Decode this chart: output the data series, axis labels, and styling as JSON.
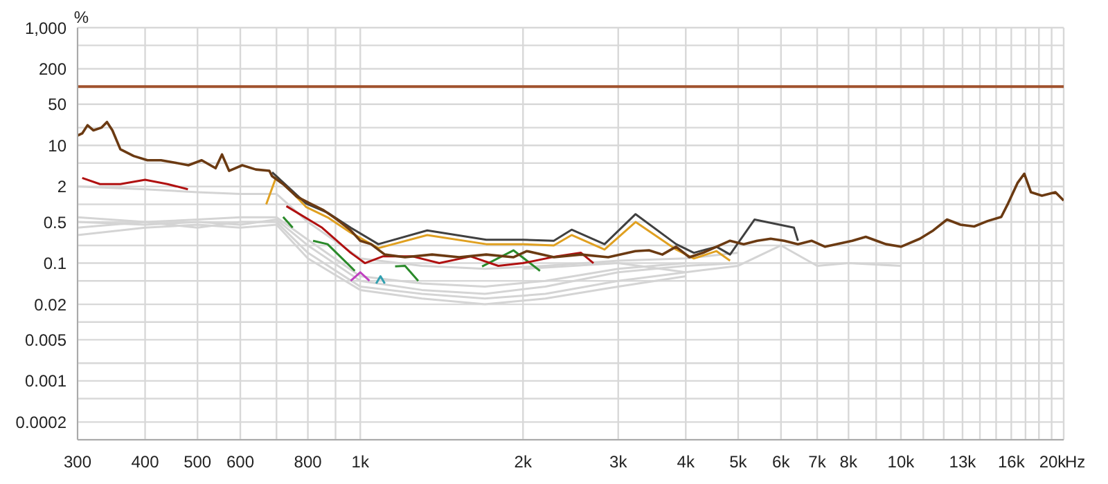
{
  "chart_data": {
    "type": "line",
    "ylabel": "%",
    "log": "xy",
    "grid": true,
    "marker": "none",
    "line_style": "solid",
    "xlim": [
      300,
      20000
    ],
    "ylim": [
      0.0001,
      1000
    ],
    "xticks": [
      300,
      400,
      500,
      600,
      {
        "value": 700,
        "label": null
      },
      800,
      {
        "value": 900,
        "label": null
      },
      {
        "value": 1000,
        "label": "1k"
      },
      {
        "value": 2000,
        "label": "2k"
      },
      {
        "value": 3000,
        "label": "3k"
      },
      {
        "value": 4000,
        "label": "4k"
      },
      {
        "value": 5000,
        "label": "5k"
      },
      {
        "value": 6000,
        "label": "6k"
      },
      {
        "value": 7000,
        "label": "7k"
      },
      {
        "value": 8000,
        "label": "8k"
      },
      {
        "value": 9000,
        "label": null
      },
      {
        "value": 10000,
        "label": "10k"
      },
      {
        "value": 11000,
        "label": null
      },
      {
        "value": 12000,
        "label": null
      },
      {
        "value": 13000,
        "label": "13k"
      },
      {
        "value": 14000,
        "label": null
      },
      {
        "value": 15000,
        "label": null
      },
      {
        "value": 16000,
        "label": "16k"
      },
      {
        "value": 17000,
        "label": null
      },
      {
        "value": 18000,
        "label": null
      },
      {
        "value": 19000,
        "label": null
      },
      {
        "value": 20000,
        "label": "20k"
      }
    ],
    "xlabel": "Hz",
    "yticks": [
      {
        "value": 0.0001,
        "label": null
      },
      0.0002,
      {
        "value": 0.0005,
        "label": null
      },
      0.001,
      {
        "value": 0.002,
        "label": null
      },
      0.005,
      {
        "value": 0.01,
        "label": null
      },
      0.02,
      {
        "value": 0.05,
        "label": null
      },
      0.1,
      {
        "value": 0.2,
        "label": null
      },
      0.5,
      {
        "value": 1,
        "label": null
      },
      2,
      {
        "value": 5,
        "label": null
      },
      10,
      {
        "value": 20,
        "label": null
      },
      50,
      {
        "value": 100,
        "label": null
      },
      200,
      {
        "value": 500,
        "label": null
      },
      {
        "value": 1000,
        "label": "1,000"
      }
    ],
    "ref_lines": [
      {
        "axis": "y",
        "value": 100,
        "label": null,
        "color": "#a0522d"
      }
    ],
    "series": [
      {
        "color": "#d4d4d4",
        "x": [
          300,
          400,
          500,
          600,
          700,
          800,
          1000,
          1300,
          1700,
          2200,
          3000,
          4000,
          5000
        ],
        "values": [
          2.0,
          1.8,
          1.6,
          1.5,
          1.5,
          0.5,
          0.12,
          0.09,
          0.08,
          0.09,
          0.11,
          0.12,
          0.15
        ]
      },
      {
        "color": "#d4d4d4",
        "x": [
          300,
          400,
          500,
          600,
          700,
          800,
          1000,
          1300,
          1700,
          2200,
          3000,
          4000,
          5000
        ],
        "values": [
          0.5,
          0.45,
          0.5,
          0.45,
          0.55,
          0.2,
          0.05,
          0.035,
          0.03,
          0.04,
          0.07,
          0.09,
          0.1
        ]
      },
      {
        "color": "#d4d4d4",
        "x": [
          300,
          400,
          500,
          600,
          700,
          800,
          1000,
          1300,
          1700,
          2200,
          3000,
          4000
        ],
        "values": [
          0.4,
          0.5,
          0.4,
          0.5,
          0.5,
          0.15,
          0.04,
          0.03,
          0.025,
          0.03,
          0.05,
          0.07
        ]
      },
      {
        "color": "#d4d4d4",
        "x": [
          300,
          400,
          500,
          600,
          700,
          800,
          1000,
          1300,
          1700,
          2200,
          3000,
          4000
        ],
        "values": [
          0.3,
          0.4,
          0.45,
          0.4,
          0.45,
          0.12,
          0.035,
          0.025,
          0.02,
          0.025,
          0.04,
          0.06
        ]
      },
      {
        "color": "#d4d4d4",
        "x": [
          300,
          400,
          500,
          600,
          700,
          800,
          1000,
          1300,
          1700,
          2200,
          3000,
          4000
        ],
        "values": [
          0.6,
          0.5,
          0.55,
          0.6,
          0.6,
          0.25,
          0.06,
          0.045,
          0.04,
          0.05,
          0.08,
          0.1
        ]
      },
      {
        "color": "#d4d4d4",
        "x": [
          2000,
          3000,
          4000,
          5000,
          6000,
          7000,
          8000,
          10000
        ],
        "values": [
          0.08,
          0.1,
          0.07,
          0.09,
          0.2,
          0.09,
          0.1,
          0.09
        ]
      },
      {
        "color": "#c040c0",
        "x": [
          960,
          1000,
          1040
        ],
        "values": [
          0.05,
          0.07,
          0.05
        ]
      },
      {
        "color": "#30a0b0",
        "x": [
          1070,
          1090,
          1110
        ],
        "values": [
          0.045,
          0.06,
          0.045
        ]
      },
      {
        "color": "#2a8a2a",
        "x": [
          720,
          750,
          780,
          818,
          870,
          977,
          1050,
          1160,
          1210,
          1280,
          1400,
          1680,
          1920,
          2150
        ],
        "values": [
          0.61,
          0.4,
          null,
          0.24,
          0.21,
          0.074,
          null,
          0.088,
          0.09,
          0.05,
          null,
          0.088,
          0.165,
          0.074
        ]
      },
      {
        "color": "#b01010",
        "x": [
          306,
          330,
          360,
          400,
          440,
          480,
          600,
          730,
          850,
          960,
          1020,
          1100,
          1250,
          1400,
          1600,
          1800,
          2000,
          2300,
          2560,
          2700
        ],
        "values": [
          2.8,
          2.2,
          2.2,
          2.6,
          2.2,
          1.8,
          null,
          0.93,
          0.4,
          0.15,
          0.1,
          0.13,
          0.13,
          0.1,
          0.13,
          0.09,
          0.1,
          0.13,
          0.15,
          0.1
        ]
      },
      {
        "color": "#e0a020",
        "x": [
          670,
          700,
          794,
          870,
          960,
          1080,
          1330,
          1710,
          2000,
          2280,
          2460,
          2830,
          3230,
          3840,
          4140,
          4560,
          4830
        ],
        "values": [
          1.0,
          3.0,
          0.9,
          0.6,
          0.33,
          0.18,
          0.3,
          0.21,
          0.21,
          0.2,
          0.3,
          0.17,
          0.5,
          0.17,
          0.12,
          0.16,
          0.11
        ]
      },
      {
        "color": "#404040",
        "x": [
          687,
          794,
          870,
          960,
          1080,
          1330,
          1710,
          2000,
          2280,
          2460,
          2830,
          3230,
          3840,
          4140,
          4560,
          4830,
          5360,
          6340,
          6450
        ],
        "values": [
          3.5,
          1.03,
          0.72,
          0.4,
          0.21,
          0.36,
          0.25,
          0.25,
          0.24,
          0.37,
          0.21,
          0.68,
          0.21,
          0.15,
          0.19,
          0.14,
          0.55,
          0.4,
          0.24
        ]
      },
      {
        "color": "#6b3a12",
        "x": [
          300,
          306,
          313,
          321,
          332,
          340,
          348,
          360,
          381,
          404,
          428,
          454,
          481,
          509,
          540,
          555,
          572,
          605,
          641,
          679,
          687,
          720,
          763,
          808,
          856,
          906,
          960,
          1000,
          1047,
          1110,
          1210,
          1358,
          1524,
          1710,
          1919,
          2033,
          2282,
          2562,
          2875,
          3226,
          3420,
          3620,
          3837,
          4063,
          4305,
          4830,
          5118,
          5421,
          5743,
          6085,
          6450,
          6834,
          7240,
          8128,
          8610,
          9380,
          10000,
          10840,
          11480,
          12170,
          12890,
          13660,
          14470,
          15330,
          15780,
          16430,
          16910,
          17400,
          18230,
          19310,
          20000
        ],
        "values": [
          14.7,
          16,
          22,
          18,
          20,
          25,
          18,
          8.6,
          6.6,
          5.6,
          5.6,
          5.1,
          4.6,
          5.6,
          4.1,
          7.0,
          3.7,
          4.6,
          3.9,
          3.7,
          3.0,
          2.2,
          1.35,
          1.03,
          0.79,
          0.55,
          0.36,
          0.24,
          0.21,
          0.14,
          0.126,
          0.14,
          0.126,
          0.14,
          0.126,
          0.16,
          0.126,
          0.14,
          0.126,
          0.16,
          0.165,
          0.14,
          0.19,
          0.126,
          0.15,
          0.24,
          0.21,
          0.24,
          0.26,
          0.24,
          0.21,
          0.24,
          0.19,
          0.24,
          0.28,
          0.21,
          0.19,
          0.26,
          0.36,
          0.55,
          0.45,
          0.42,
          0.52,
          0.61,
          1.03,
          2.3,
          3.3,
          1.6,
          1.4,
          1.6,
          1.16
        ]
      }
    ]
  }
}
